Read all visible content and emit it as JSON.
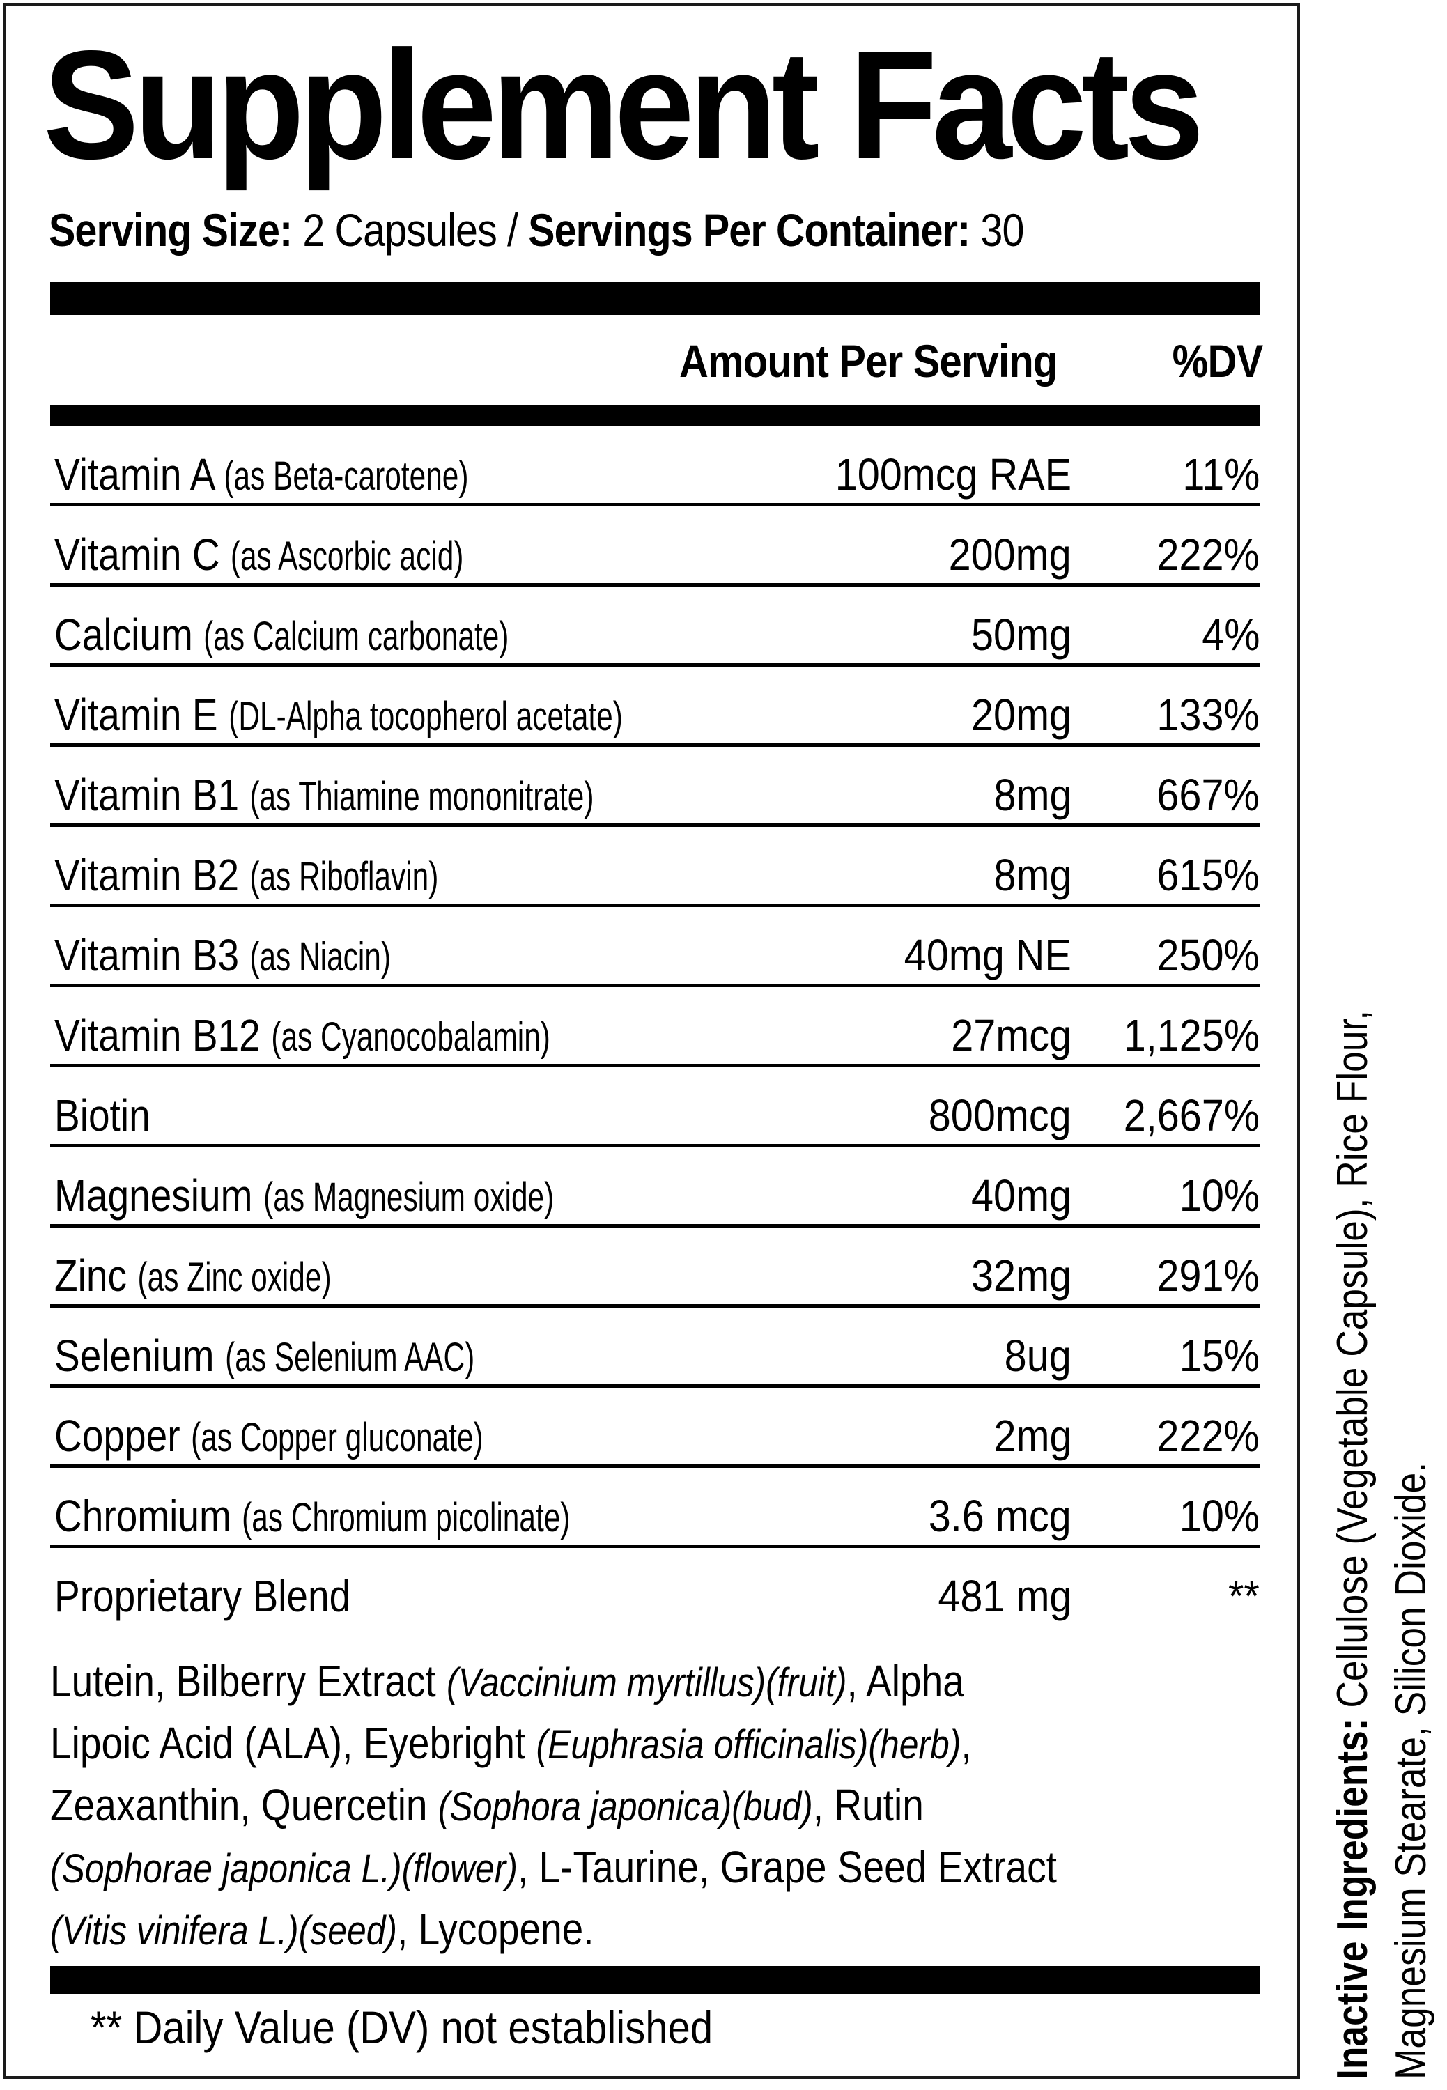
{
  "label": {
    "title": "Supplement Facts",
    "serving": {
      "size_label": "Serving Size:",
      "size_value": " 2 Capsules / ",
      "per_container_label": "Servings Per Container:",
      "per_container_value": " 30"
    },
    "columns": {
      "amount": "Amount Per Serving",
      "dv": "%DV"
    },
    "rows": [
      {
        "name": "Vitamin A",
        "source": "(as Beta-carotene)",
        "amount": "100mcg RAE",
        "dv": "11%"
      },
      {
        "name": "Vitamin C",
        "source": "(as Ascorbic acid)",
        "amount": "200mg",
        "dv": "222%"
      },
      {
        "name": "Calcium",
        "source": "(as Calcium carbonate)",
        "amount": "50mg",
        "dv": "4%"
      },
      {
        "name": "Vitamin E",
        "source": "(DL-Alpha tocopherol acetate)",
        "amount": "20mg",
        "dv": "133%"
      },
      {
        "name": "Vitamin B1",
        "source": "(as Thiamine mononitrate)",
        "amount": "8mg",
        "dv": "667%"
      },
      {
        "name": "Vitamin B2",
        "source": "(as Riboflavin)",
        "amount": "8mg",
        "dv": "615%"
      },
      {
        "name": "Vitamin B3",
        "source": "(as Niacin)",
        "amount": "40mg NE",
        "dv": "250%"
      },
      {
        "name": "Vitamin B12",
        "source": "(as Cyanocobalamin)",
        "amount": "27mcg",
        "dv": "1,125%"
      },
      {
        "name": "Biotin",
        "source": "",
        "amount": "800mcg",
        "dv": "2,667%"
      },
      {
        "name": "Magnesium",
        "source": "(as Magnesium oxide)",
        "amount": "40mg",
        "dv": "10%"
      },
      {
        "name": "Zinc",
        "source": "(as Zinc oxide)",
        "amount": "32mg",
        "dv": "291%"
      },
      {
        "name": "Selenium",
        "source": "(as Selenium AAC)",
        "amount": "8ug",
        "dv": "15%"
      },
      {
        "name": "Copper",
        "source": "(as Copper gluconate)",
        "amount": "2mg",
        "dv": "222%"
      },
      {
        "name": "Chromium",
        "source": "(as Chromium picolinate)",
        "amount": "3.6 mcg",
        "dv": "10%"
      },
      {
        "name": "Proprietary Blend",
        "source": "",
        "amount": "481 mg",
        "dv": "**"
      }
    ],
    "blend_lines": [
      {
        "a": "Lutein, Bilberry Extract ",
        "i": "(Vaccinium myrtillus)(fruit)",
        "b": ", Alpha"
      },
      {
        "a": "Lipoic Acid (ALA), Eyebright ",
        "i": "(Euphrasia officinalis)(herb)",
        "b": ","
      },
      {
        "a": "Zeaxanthin, Quercetin ",
        "i": "(Sophora japonica)(bud)",
        "b": ", Rutin"
      },
      {
        "a": "",
        "i": "(Sophorae japonica L.)(flower)",
        "b": ", L-Taurine, Grape Seed Extract"
      },
      {
        "a": "",
        "i": "(Vitis vinifera L.)(seed)",
        "b": ", Lycopene."
      }
    ],
    "footnote": "** Daily Value (DV) not established",
    "inactive": {
      "label": "Inactive Ingredients:",
      "line1": " Cellulose (Vegetable Capsule),  Rice Flour,",
      "line2": "Magnesium Stearate, Silicon Dioxide."
    }
  }
}
